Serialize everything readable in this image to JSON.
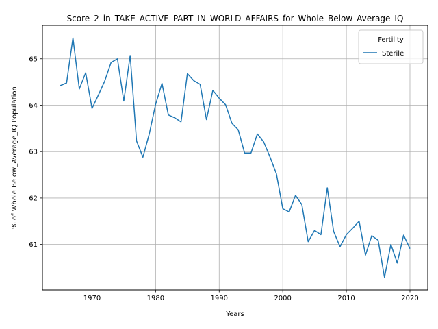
{
  "chart_data": {
    "type": "line",
    "title": "Score_2_in_TAKE_ACTIVE_PART_IN_WORLD_AFFAIRS_for_Whole_Below_Average_IQ",
    "xlabel": "Years",
    "ylabel": "% of Whole Below_Average_IQ Population",
    "xlim": [
      1962.2,
      2022.8
    ],
    "ylim": [
      60.02,
      65.72
    ],
    "x_ticks": [
      1970,
      1980,
      1990,
      2000,
      2010,
      2020
    ],
    "x_tick_labels": [
      "1970",
      "1980",
      "1990",
      "2000",
      "2010",
      "2020"
    ],
    "y_ticks": [
      61,
      62,
      63,
      64,
      65
    ],
    "y_tick_labels": [
      "61",
      "62",
      "63",
      "64",
      "65"
    ],
    "grid": true,
    "legend": {
      "title": "Fertility",
      "placement": "top-right"
    },
    "series": [
      {
        "name": "Sterile",
        "color": "#1f77b4",
        "x": [
          1965,
          1966,
          1967,
          1968,
          1969,
          1970,
          1971,
          1972,
          1973,
          1974,
          1975,
          1976,
          1977,
          1978,
          1979,
          1980,
          1981,
          1982,
          1983,
          1984,
          1985,
          1986,
          1987,
          1988,
          1989,
          1990,
          1991,
          1992,
          1993,
          1994,
          1995,
          1996,
          1997,
          1998,
          1999,
          2000,
          2001,
          2002,
          2003,
          2004,
          2005,
          2006,
          2007,
          2008,
          2009,
          2010,
          2011,
          2012,
          2013,
          2014,
          2015,
          2016,
          2017,
          2018,
          2019,
          2020
        ],
        "values": [
          64.42,
          64.48,
          65.45,
          64.35,
          64.7,
          63.93,
          64.22,
          64.52,
          64.92,
          65.0,
          64.09,
          65.07,
          63.23,
          62.88,
          63.38,
          64.02,
          64.47,
          63.79,
          63.73,
          63.64,
          64.68,
          64.53,
          64.45,
          63.69,
          64.32,
          64.15,
          64.01,
          63.61,
          63.47,
          62.97,
          62.97,
          63.38,
          63.21,
          62.88,
          62.52,
          61.77,
          61.7,
          62.06,
          61.86,
          61.06,
          61.3,
          61.21,
          62.22,
          61.28,
          60.95,
          61.21,
          61.35,
          61.5,
          60.77,
          61.19,
          61.09,
          60.29,
          61.0,
          60.6,
          61.2,
          60.91
        ]
      }
    ]
  }
}
